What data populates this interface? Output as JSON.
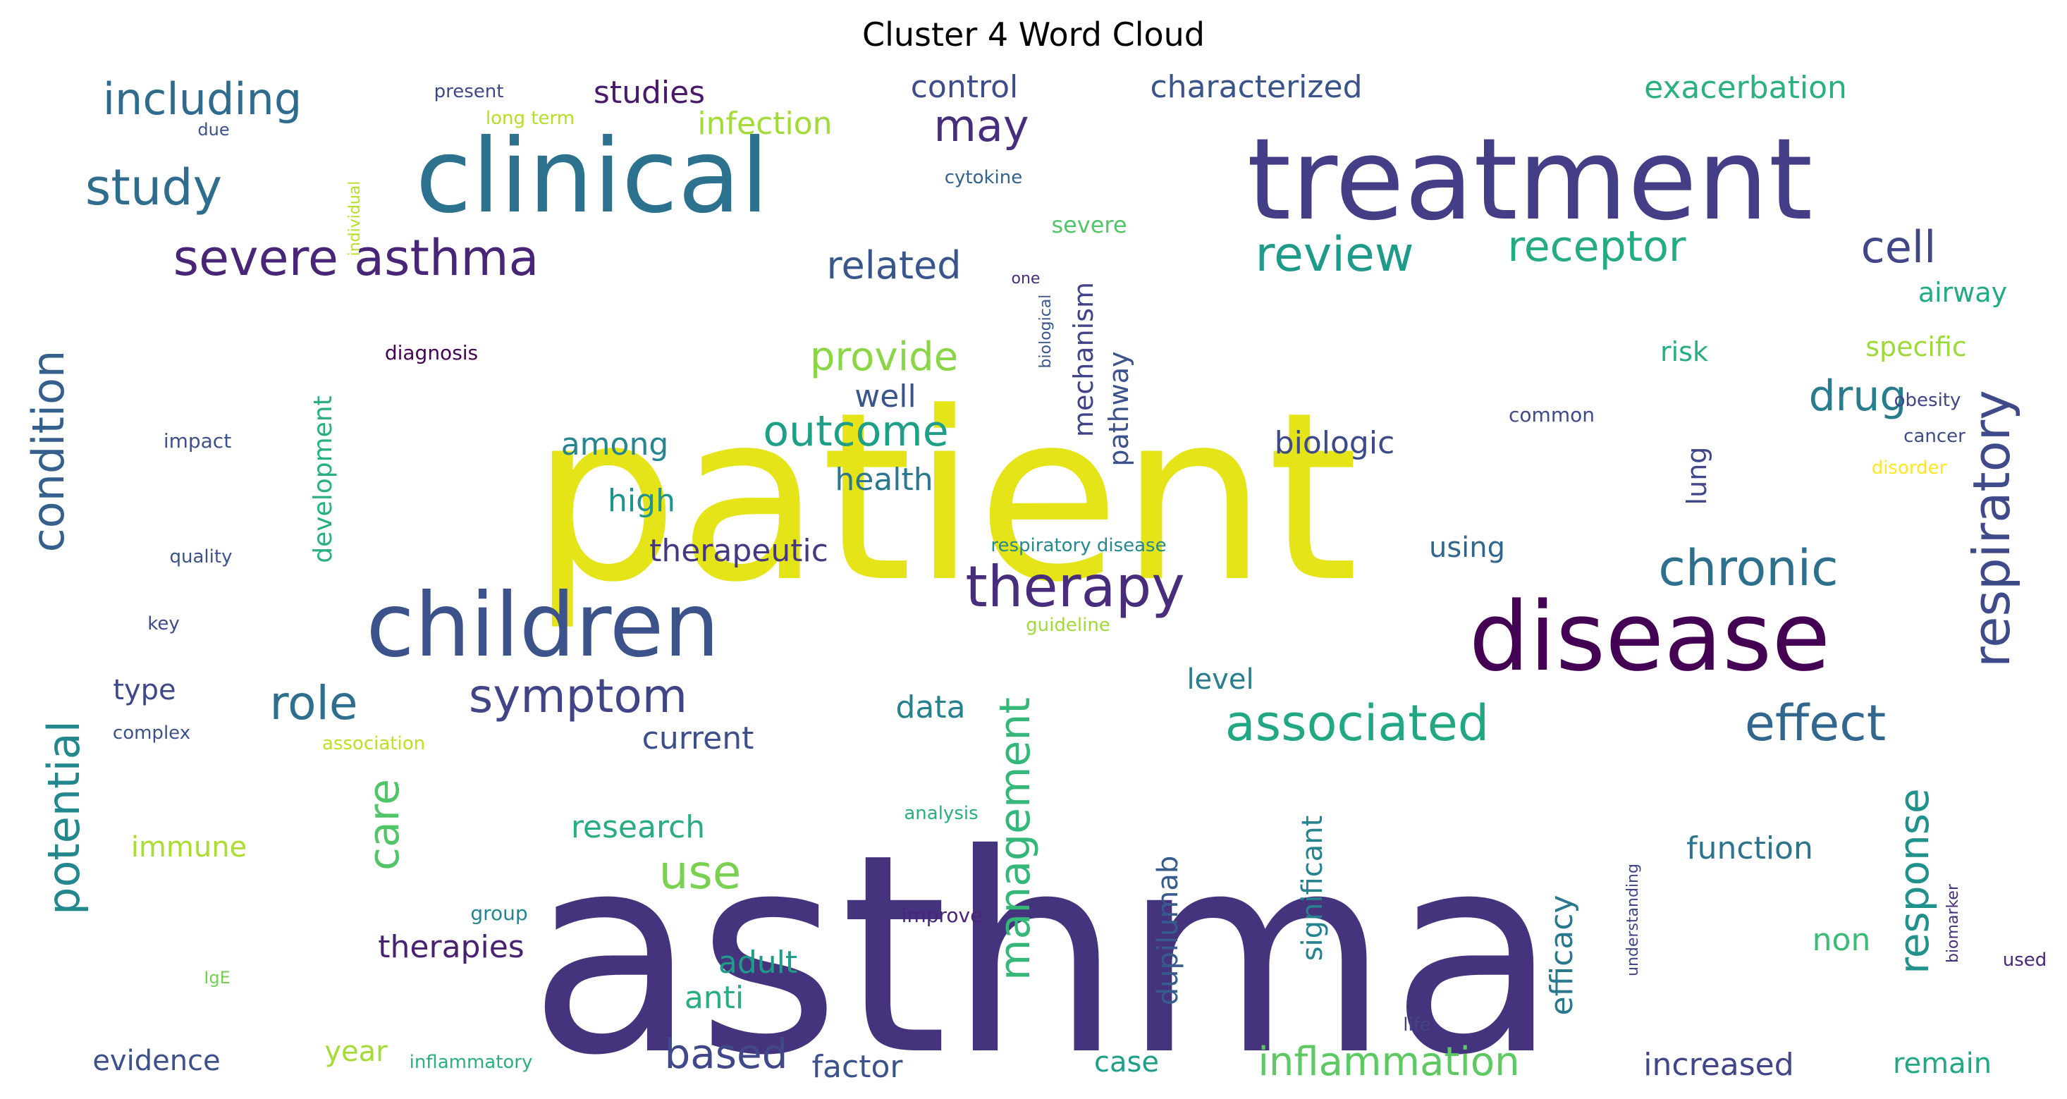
{
  "chart_data": {
    "type": "wordcloud",
    "title": "Cluster 4 Word Cloud",
    "words": [
      {
        "text": "patient",
        "size": 330,
        "color": "#e4e419"
      },
      {
        "text": "asthma",
        "size": 390,
        "color": "#46337e"
      },
      {
        "text": "treatment",
        "size": 160,
        "color": "#433e85"
      },
      {
        "text": "clinical",
        "size": 145,
        "color": "#2c728e"
      },
      {
        "text": "disease",
        "size": 135,
        "color": "#440154"
      },
      {
        "text": "children",
        "size": 125,
        "color": "#3b528b"
      },
      {
        "text": "therapy",
        "size": 80,
        "color": "#472d7b"
      },
      {
        "text": "severe asthma",
        "size": 70,
        "color": "#482576"
      },
      {
        "text": "study",
        "size": 70,
        "color": "#2e6d8e"
      },
      {
        "text": "including",
        "size": 62,
        "color": "#2f6b8e"
      },
      {
        "text": "review",
        "size": 68,
        "color": "#1f9a8a"
      },
      {
        "text": "cell",
        "size": 62,
        "color": "#404688"
      },
      {
        "text": "receptor",
        "size": 60,
        "color": "#25ab82"
      },
      {
        "text": "may",
        "size": 62,
        "color": "#472e7c"
      },
      {
        "text": "related",
        "size": 54,
        "color": "#39568c"
      },
      {
        "text": "condition",
        "size": 62,
        "color": "#35608d"
      },
      {
        "text": "provide",
        "size": 56,
        "color": "#8bd646"
      },
      {
        "text": "outcome",
        "size": 60,
        "color": "#1f9f88"
      },
      {
        "text": "drug",
        "size": 60,
        "color": "#287c8e"
      },
      {
        "text": "respiratory",
        "size": 72,
        "color": "#3e4a89"
      },
      {
        "text": "chronic",
        "size": 70,
        "color": "#2d708e"
      },
      {
        "text": "associated",
        "size": 70,
        "color": "#22a785"
      },
      {
        "text": "effect",
        "size": 70,
        "color": "#31678e"
      },
      {
        "text": "role",
        "size": 66,
        "color": "#2e6e8e"
      },
      {
        "text": "symptom",
        "size": 66,
        "color": "#404588"
      },
      {
        "text": "potential",
        "size": 62,
        "color": "#23888e"
      },
      {
        "text": "care",
        "size": 60,
        "color": "#52c569"
      },
      {
        "text": "management",
        "size": 60,
        "color": "#35b779"
      },
      {
        "text": "response",
        "size": 58,
        "color": "#21918c"
      },
      {
        "text": "use",
        "size": 66,
        "color": "#7ad151"
      },
      {
        "text": "based",
        "size": 58,
        "color": "#3f4889"
      },
      {
        "text": "inflammation",
        "size": 56,
        "color": "#5ec962"
      },
      {
        "text": "efficacy",
        "size": 44,
        "color": "#2a788e"
      },
      {
        "text": "dupilumab",
        "size": 40,
        "color": "#365c8d"
      },
      {
        "text": "significant",
        "size": 40,
        "color": "#26828e"
      },
      {
        "text": "mechanism",
        "size": 38,
        "color": "#404387"
      },
      {
        "text": "pathway",
        "size": 38,
        "color": "#3b518b"
      },
      {
        "text": "development",
        "size": 36,
        "color": "#2ab07f"
      },
      {
        "text": "lung",
        "size": 38,
        "color": "#3f4788"
      },
      {
        "text": "characterized",
        "size": 44,
        "color": "#3a538b"
      },
      {
        "text": "control",
        "size": 44,
        "color": "#3e4c8a"
      },
      {
        "text": "studies",
        "size": 44,
        "color": "#481a6c"
      },
      {
        "text": "infection",
        "size": 44,
        "color": "#a2da37"
      },
      {
        "text": "exacerbation",
        "size": 44,
        "color": "#2cb17e"
      },
      {
        "text": "airway",
        "size": 38,
        "color": "#24aa83"
      },
      {
        "text": "specific",
        "size": 38,
        "color": "#9dd93b"
      },
      {
        "text": "risk",
        "size": 38,
        "color": "#27ad81"
      },
      {
        "text": "biologic",
        "size": 44,
        "color": "#3e4989"
      },
      {
        "text": "well",
        "size": 44,
        "color": "#39558c"
      },
      {
        "text": "among",
        "size": 44,
        "color": "#25848e"
      },
      {
        "text": "health",
        "size": 44,
        "color": "#2a778e"
      },
      {
        "text": "high",
        "size": 44,
        "color": "#1f948c"
      },
      {
        "text": "therapeutic",
        "size": 44,
        "color": "#453781"
      },
      {
        "text": "using",
        "size": 40,
        "color": "#31678e"
      },
      {
        "text": "level",
        "size": 40,
        "color": "#287d8e"
      },
      {
        "text": "data",
        "size": 44,
        "color": "#26818e"
      },
      {
        "text": "current",
        "size": 44,
        "color": "#3c4f8a"
      },
      {
        "text": "type",
        "size": 40,
        "color": "#3f4889"
      },
      {
        "text": "research",
        "size": 44,
        "color": "#27ad81"
      },
      {
        "text": "immune",
        "size": 40,
        "color": "#aadc32"
      },
      {
        "text": "therapies",
        "size": 44,
        "color": "#482173"
      },
      {
        "text": "adult",
        "size": 44,
        "color": "#1e9c89"
      },
      {
        "text": "anti",
        "size": 44,
        "color": "#28ae80"
      },
      {
        "text": "year",
        "size": 40,
        "color": "#a5db36"
      },
      {
        "text": "evidence",
        "size": 40,
        "color": "#3c508b"
      },
      {
        "text": "factor",
        "size": 44,
        "color": "#3b528b"
      },
      {
        "text": "case",
        "size": 40,
        "color": "#1f9f88"
      },
      {
        "text": "increased",
        "size": 44,
        "color": "#404688"
      },
      {
        "text": "remain",
        "size": 40,
        "color": "#22a884"
      },
      {
        "text": "function",
        "size": 44,
        "color": "#2c738e"
      },
      {
        "text": "non",
        "size": 44,
        "color": "#3bbb75"
      },
      {
        "text": "severe",
        "size": 32,
        "color": "#52c569"
      },
      {
        "text": "present",
        "size": 26,
        "color": "#3f4889"
      },
      {
        "text": "long term",
        "size": 26,
        "color": "#b5de2b"
      },
      {
        "text": "due",
        "size": 24,
        "color": "#3b528b"
      },
      {
        "text": "individual",
        "size": 22,
        "color": "#b5de2b"
      },
      {
        "text": "cytokine",
        "size": 26,
        "color": "#33628d"
      },
      {
        "text": "one",
        "size": 22,
        "color": "#472c7a"
      },
      {
        "text": "biological",
        "size": 22,
        "color": "#3a548c"
      },
      {
        "text": "diagnosis",
        "size": 28,
        "color": "#440154"
      },
      {
        "text": "impact",
        "size": 28,
        "color": "#3b528b"
      },
      {
        "text": "common",
        "size": 28,
        "color": "#3e4a89"
      },
      {
        "text": "obesity",
        "size": 26,
        "color": "#414487"
      },
      {
        "text": "cancer",
        "size": 26,
        "color": "#3e4c8a"
      },
      {
        "text": "disorder",
        "size": 26,
        "color": "#fde725"
      },
      {
        "text": "quality",
        "size": 26,
        "color": "#3b528b"
      },
      {
        "text": "key",
        "size": 26,
        "color": "#3f4889"
      },
      {
        "text": "respiratory disease",
        "size": 26,
        "color": "#23898e"
      },
      {
        "text": "guideline",
        "size": 26,
        "color": "#9fda3a"
      },
      {
        "text": "complex",
        "size": 26,
        "color": "#3b528b"
      },
      {
        "text": "association",
        "size": 26,
        "color": "#bddf26"
      },
      {
        "text": "analysis",
        "size": 26,
        "color": "#2ab07f"
      },
      {
        "text": "understanding",
        "size": 22,
        "color": "#3f4788"
      },
      {
        "text": "biomarker",
        "size": 22,
        "color": "#472d7b"
      },
      {
        "text": "used",
        "size": 26,
        "color": "#482878"
      },
      {
        "text": "life",
        "size": 26,
        "color": "#414487"
      },
      {
        "text": "group",
        "size": 28,
        "color": "#25848e"
      },
      {
        "text": "improve",
        "size": 28,
        "color": "#482576"
      },
      {
        "text": "IgE",
        "size": 24,
        "color": "#75d054"
      },
      {
        "text": "inflammatory",
        "size": 26,
        "color": "#2ab07f"
      }
    ]
  }
}
